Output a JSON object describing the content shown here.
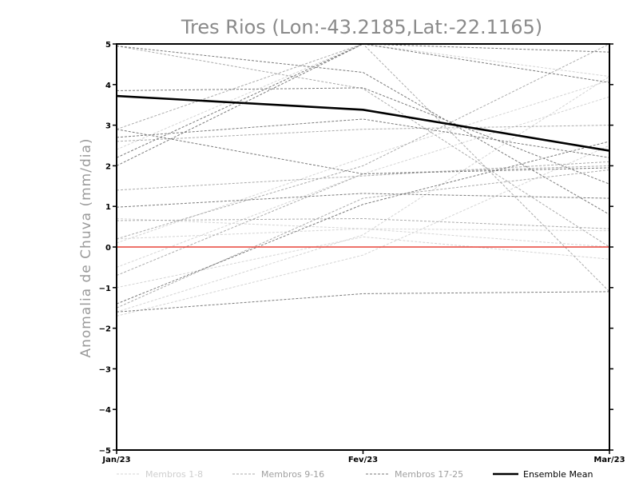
{
  "chart_data": {
    "type": "line",
    "title": "Tres Rios (Lon:-43.2185,Lat:-22.1165)",
    "xlabel": "",
    "ylabel": "Anomalia de Chuva (mm/dia)",
    "categories": [
      "Jan/23",
      "Fev/23",
      "Mar/23"
    ],
    "ylim": [
      -5,
      5
    ],
    "yticks": [
      -5,
      -4,
      -3,
      -2,
      -1,
      0,
      1,
      2,
      3,
      4,
      5
    ],
    "grid": false,
    "legend_position": "bottom",
    "reference_line": {
      "y": 0,
      "color": "#e8443a"
    },
    "groups": [
      {
        "name": "Membros 1-8",
        "color": "#d4d4d4"
      },
      {
        "name": "Membros 9-16",
        "color": "#ababab"
      },
      {
        "name": "Membros 17-25",
        "color": "#7a7a7a"
      },
      {
        "name": "Ensemble Mean",
        "color": "#000000"
      }
    ],
    "series": [
      {
        "group": 0,
        "values": [
          0.2,
          0.45,
          0.0
        ]
      },
      {
        "group": 0,
        "values": [
          -0.5,
          1.8,
          3.7
        ]
      },
      {
        "group": 0,
        "values": [
          -1.6,
          0.3,
          4.2
        ]
      },
      {
        "group": 0,
        "values": [
          0.1,
          2.2,
          4.1
        ]
      },
      {
        "group": 0,
        "values": [
          2.4,
          5.0,
          4.2
        ]
      },
      {
        "group": 0,
        "values": [
          -1.0,
          0.25,
          -0.3
        ]
      },
      {
        "group": 0,
        "values": [
          -1.7,
          -0.2,
          2.5
        ]
      },
      {
        "group": 0,
        "values": [
          0.7,
          0.45,
          0.4
        ]
      },
      {
        "group": 1,
        "values": [
          4.95,
          3.9,
          0.0
        ]
      },
      {
        "group": 1,
        "values": [
          2.6,
          2.9,
          3.0
        ]
      },
      {
        "group": 1,
        "values": [
          0.65,
          0.7,
          0.45
        ]
      },
      {
        "group": 1,
        "values": [
          -0.7,
          1.8,
          2.0
        ]
      },
      {
        "group": 1,
        "values": [
          0.2,
          2.0,
          5.0
        ]
      },
      {
        "group": 1,
        "values": [
          2.9,
          5.0,
          -1.1
        ]
      },
      {
        "group": 1,
        "values": [
          1.4,
          1.75,
          2.1
        ]
      },
      {
        "group": 1,
        "values": [
          -1.5,
          1.2,
          1.9
        ]
      },
      {
        "group": 2,
        "values": [
          3.85,
          3.92,
          1.55
        ]
      },
      {
        "group": 2,
        "values": [
          2.7,
          3.15,
          2.2
        ]
      },
      {
        "group": 2,
        "values": [
          2.0,
          5.0,
          4.8
        ]
      },
      {
        "group": 2,
        "values": [
          2.2,
          5.0,
          4.05
        ]
      },
      {
        "group": 2,
        "values": [
          0.98,
          1.32,
          1.2
        ]
      },
      {
        "group": 2,
        "values": [
          -1.6,
          -1.15,
          -1.1
        ]
      },
      {
        "group": 2,
        "values": [
          -1.4,
          1.05,
          2.6
        ]
      },
      {
        "group": 2,
        "values": [
          2.9,
          1.8,
          1.95
        ]
      },
      {
        "group": 2,
        "values": [
          4.95,
          4.3,
          0.8
        ]
      }
    ],
    "ensemble_mean": {
      "name": "Ensemble Mean",
      "values": [
        3.72,
        3.38,
        2.37
      ]
    }
  }
}
